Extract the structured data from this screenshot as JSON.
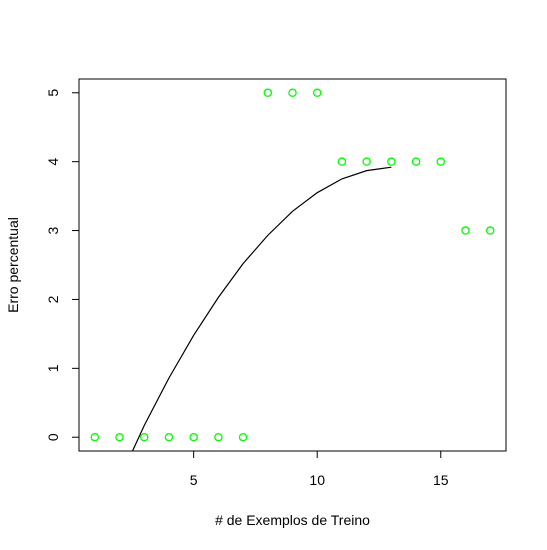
{
  "chart_data": {
    "type": "scatter",
    "xlabel": "# de Exemplos de Treino",
    "ylabel": "Erro percentual",
    "xlim": [
      0.36,
      17.64
    ],
    "ylim": [
      -0.2,
      5.2
    ],
    "x_ticks": [
      5,
      10,
      15
    ],
    "y_ticks": [
      0,
      1,
      2,
      3,
      4,
      5
    ],
    "grid": false,
    "legend": "none",
    "series": [
      {
        "kind": "points",
        "marker": "open-circle",
        "color": "#00ff00",
        "x": [
          1,
          2,
          3,
          4,
          5,
          6,
          7,
          8,
          9,
          10,
          11,
          12,
          13,
          14,
          15,
          16,
          17
        ],
        "y": [
          0,
          0,
          0,
          0,
          0,
          0,
          0,
          5,
          5,
          5,
          4,
          4,
          4,
          4,
          4,
          3,
          3
        ]
      },
      {
        "kind": "line",
        "color": "#000000",
        "x": [
          2.5,
          3,
          4,
          5,
          6,
          7,
          8,
          9,
          10,
          11,
          12,
          13
        ],
        "y": [
          -0.22,
          0.17,
          0.86,
          1.48,
          2.03,
          2.52,
          2.93,
          3.28,
          3.55,
          3.75,
          3.87,
          3.92
        ]
      }
    ]
  }
}
